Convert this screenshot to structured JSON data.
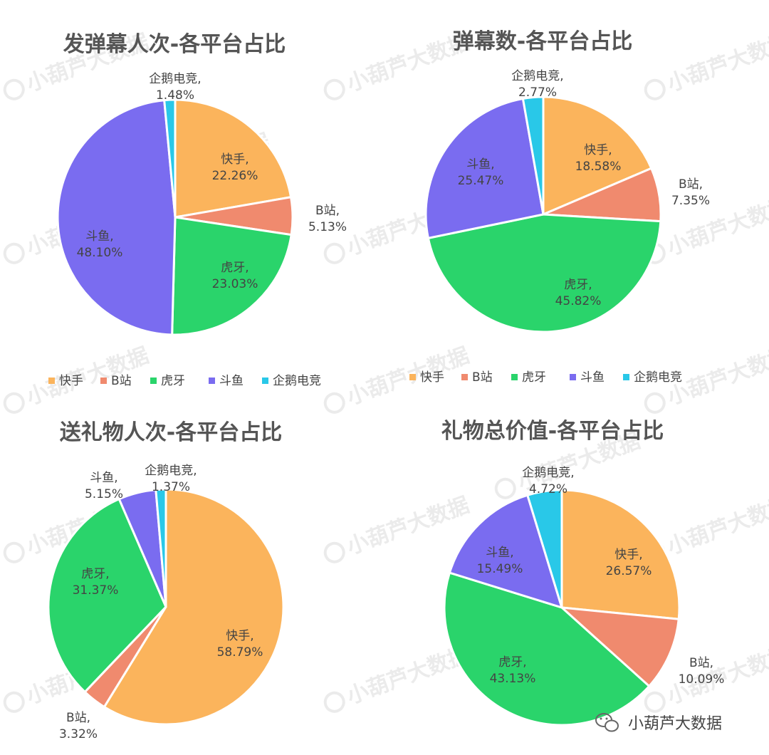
{
  "legend_labels": [
    "快手",
    "B站",
    "虎牙",
    "斗鱼",
    "企鹅电竞"
  ],
  "colors": {
    "快手": "#fbb45c",
    "B站": "#f08a6e",
    "虎牙": "#2ad46b",
    "斗鱼": "#7a6cf0",
    "企鹅电竞": "#29c8e8"
  },
  "watermark": "小葫芦大数据",
  "chart_data": [
    {
      "type": "pie",
      "title": "发弹幕人次-各平台占比",
      "slices": [
        {
          "label": "快手",
          "value": 22.26,
          "text": "22.26%"
        },
        {
          "label": "B站",
          "value": 5.13,
          "text": "5.13%"
        },
        {
          "label": "虎牙",
          "value": 23.03,
          "text": "23.03%"
        },
        {
          "label": "斗鱼",
          "value": 48.1,
          "text": "48.10%"
        },
        {
          "label": "企鹅电竞",
          "value": 1.48,
          "text": "1.48%"
        }
      ],
      "legend": "bottom"
    },
    {
      "type": "pie",
      "title": "弹幕数-各平台占比",
      "slices": [
        {
          "label": "快手",
          "value": 18.58,
          "text": "18.58%"
        },
        {
          "label": "B站",
          "value": 7.35,
          "text": "7.35%"
        },
        {
          "label": "虎牙",
          "value": 45.82,
          "text": "45.82%"
        },
        {
          "label": "斗鱼",
          "value": 25.47,
          "text": "25.47%"
        },
        {
          "label": "企鹅电竞",
          "value": 2.77,
          "text": "2.77%"
        }
      ],
      "legend": "bottom"
    },
    {
      "type": "pie",
      "title": "送礼物人次-各平台占比",
      "slices": [
        {
          "label": "快手",
          "value": 58.79,
          "text": "58.79%"
        },
        {
          "label": "B站",
          "value": 3.32,
          "text": "3.32%"
        },
        {
          "label": "虎牙",
          "value": 31.37,
          "text": "31.37%"
        },
        {
          "label": "斗鱼",
          "value": 5.15,
          "text": "5.15%"
        },
        {
          "label": "企鹅电竞",
          "value": 1.37,
          "text": "1.37%"
        }
      ]
    },
    {
      "type": "pie",
      "title": "礼物总价值-各平台占比",
      "slices": [
        {
          "label": "快手",
          "value": 26.57,
          "text": "26.57%"
        },
        {
          "label": "B站",
          "value": 10.09,
          "text": "10.09%"
        },
        {
          "label": "虎牙",
          "value": 43.13,
          "text": "43.13%"
        },
        {
          "label": "斗鱼",
          "value": 15.49,
          "text": "15.49%"
        },
        {
          "label": "企鹅电竞",
          "value": 4.72,
          "text": "4.72%"
        }
      ]
    }
  ]
}
